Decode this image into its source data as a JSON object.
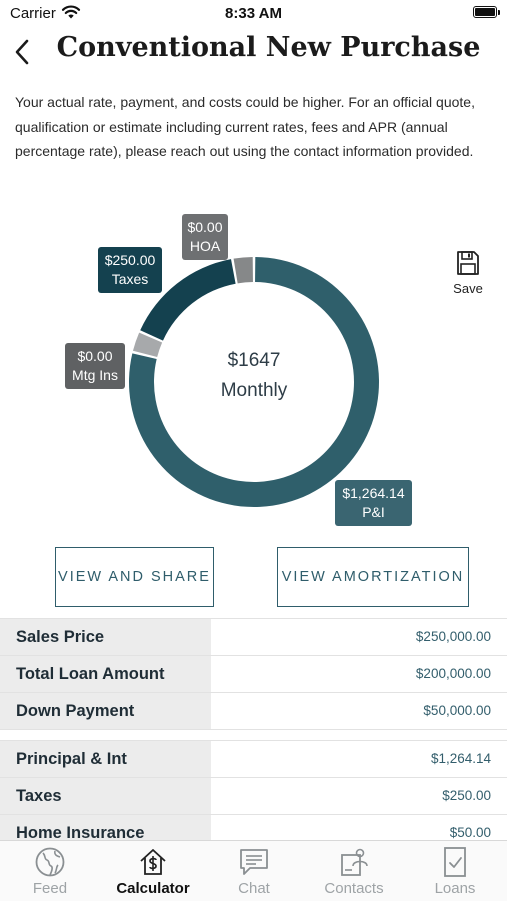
{
  "status_bar": {
    "carrier": "Carrier",
    "time": "8:33 AM"
  },
  "header": {
    "title": "Conventional New Purchase"
  },
  "disclaimer": "Your actual rate, payment, and costs could be higher. For an official quote, qualification or estimate including current rates, fees and APR (annual percentage rate), please reach out using the contact information provided.",
  "chart_data": {
    "type": "pie",
    "center_amount": "$1647",
    "center_label": "Monthly",
    "slices": [
      {
        "label": "P&I",
        "value": 1264.14,
        "display": "$1,264.14",
        "color": "#2f5f6b"
      },
      {
        "label": "Mtg Ins",
        "value": 0.0,
        "display": "$0.00",
        "color": "#a7a9ab"
      },
      {
        "label": "Taxes",
        "value": 250.0,
        "display": "$250.00",
        "color": "#14414f"
      },
      {
        "label": "HOA",
        "value": 0.0,
        "display": "$0.00",
        "color": "#868889"
      }
    ]
  },
  "save": {
    "label": "Save"
  },
  "buttons": {
    "view_share": "VIEW AND SHARE",
    "view_amortization": "VIEW AMORTIZATION"
  },
  "loan_summary": [
    {
      "label": "Sales Price",
      "value": "$250,000.00"
    },
    {
      "label": "Total Loan Amount",
      "value": "$200,000.00"
    },
    {
      "label": "Down Payment",
      "value": "$50,000.00"
    }
  ],
  "payment_breakdown": [
    {
      "label": "Principal & Int",
      "value": "$1,264.14"
    },
    {
      "label": "Taxes",
      "value": "$250.00"
    },
    {
      "label": "Home Insurance",
      "value": "$50.00"
    }
  ],
  "tabs": [
    {
      "label": "Feed",
      "icon": "globe-icon",
      "active": false
    },
    {
      "label": "Calculator",
      "icon": "calculator-home-icon",
      "active": true
    },
    {
      "label": "Chat",
      "icon": "chat-icon",
      "active": false
    },
    {
      "label": "Contacts",
      "icon": "contacts-icon",
      "active": false
    },
    {
      "label": "Loans",
      "icon": "loans-icon",
      "active": false
    }
  ]
}
